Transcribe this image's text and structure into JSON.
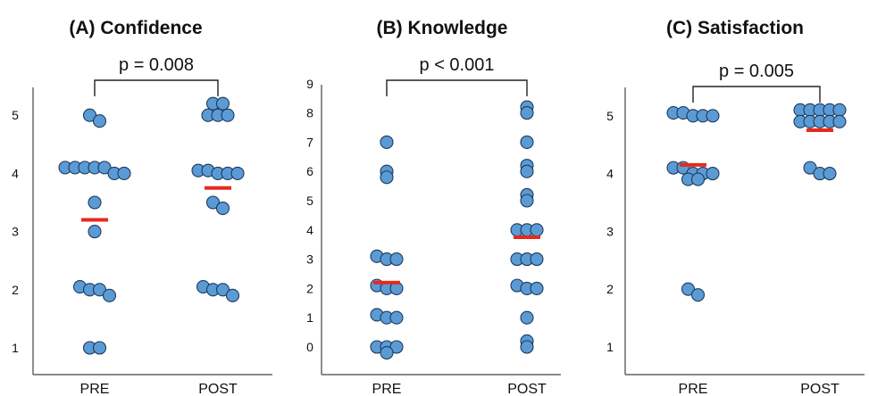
{
  "chart_data": [
    {
      "type": "scatter",
      "title": "(A) Confidence",
      "categories": [
        "PRE",
        "POST"
      ],
      "ylim": [
        0.6,
        5.5
      ],
      "yticks": [
        1,
        2,
        3,
        4,
        5
      ],
      "annotation": "p = 0.008",
      "points": {
        "PRE": [
          5,
          4.9,
          4.1,
          4.1,
          4.1,
          4.1,
          4.1,
          4,
          4,
          3.5,
          3,
          2.05,
          2,
          2,
          1.9,
          1,
          1
        ],
        "POST": [
          5.2,
          5.2,
          5,
          5,
          5,
          4.05,
          4.05,
          4,
          4,
          4,
          3.5,
          3.4,
          2.05,
          2,
          2,
          1.9
        ]
      },
      "mean": {
        "PRE": 3.2,
        "POST": 3.75
      }
    },
    {
      "type": "scatter",
      "title": "(B) Knowledge",
      "categories": [
        "PRE",
        "POST"
      ],
      "ylim": [
        -0.6,
        9
      ],
      "yticks": [
        0,
        1,
        2,
        3,
        4,
        5,
        6,
        7,
        8,
        9
      ],
      "annotation": "p < 0.001",
      "points": {
        "PRE": [
          7,
          6,
          5.8,
          3.1,
          3,
          3,
          2.1,
          2,
          2,
          1.1,
          1,
          1,
          0,
          0,
          0,
          -0.2
        ],
        "POST": [
          8.2,
          8,
          7,
          6.2,
          6,
          5.2,
          5,
          4,
          4,
          4,
          3,
          3,
          3,
          2.1,
          2,
          2,
          1,
          0.2,
          0
        ]
      },
      "mean": {
        "PRE": 2.2,
        "POST": 3.75
      }
    },
    {
      "type": "scatter",
      "title": "(C) Satisfaction",
      "categories": [
        "PRE",
        "POST"
      ],
      "ylim": [
        0.6,
        5.5
      ],
      "yticks": [
        1,
        2,
        3,
        4,
        5
      ],
      "annotation": "p = 0.005",
      "points": {
        "PRE": [
          5.05,
          5.05,
          5,
          5,
          5,
          4.1,
          4.1,
          4,
          4,
          4,
          3.9,
          3.9,
          2,
          1.9
        ],
        "POST": [
          5.1,
          5.1,
          5.1,
          5.1,
          5.1,
          4.9,
          4.9,
          4.9,
          4.9,
          4.9,
          4.1,
          4,
          4
        ]
      },
      "mean": {
        "PRE": 4.15,
        "POST": 4.75
      }
    }
  ],
  "colors": {
    "point_fill": "#5b9bd5",
    "point_stroke": "#1f3a5c",
    "mean_line": "#e8291c",
    "axis": "#444444"
  }
}
